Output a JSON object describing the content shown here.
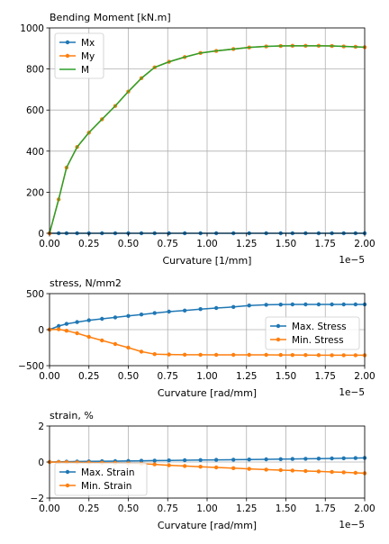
{
  "chart_data": [
    {
      "type": "line",
      "title": "Bending Moment [kN.m]",
      "xlabel": "Curvature [1/mm]",
      "ylabel": "",
      "x_offset_label": "1e−5",
      "xlim": [
        0,
        2e-05
      ],
      "ylim": [
        0,
        1000
      ],
      "xticks": [
        0,
        2.5e-06,
        5e-06,
        7.5e-06,
        1e-05,
        1.25e-05,
        1.5e-05,
        1.75e-05,
        2e-05
      ],
      "xtick_labels": [
        "0.00",
        "0.25",
        "0.50",
        "0.75",
        "1.00",
        "1.25",
        "1.50",
        "1.75",
        "2.00"
      ],
      "yticks": [
        0,
        200,
        400,
        600,
        800,
        1000
      ],
      "ytick_labels": [
        "0",
        "200",
        "400",
        "600",
        "800",
        "1000"
      ],
      "grid": true,
      "legend": "upper-left",
      "x": [
        0,
        5.8e-07,
        1.08e-06,
        1.75e-06,
        2.5e-06,
        3.33e-06,
        4.17e-06,
        5e-06,
        5.83e-06,
        6.67e-06,
        7.58e-06,
        8.58e-06,
        9.58e-06,
        1.058e-05,
        1.167e-05,
        1.267e-05,
        1.375e-05,
        1.467e-05,
        1.542e-05,
        1.625e-05,
        1.708e-05,
        1.792e-05,
        1.867e-05,
        1.942e-05,
        2e-05
      ],
      "series": [
        {
          "name": "Mx",
          "color": "#1f77b4",
          "marker": true,
          "values": [
            0,
            0,
            0,
            0,
            0,
            0,
            0,
            0,
            0,
            0,
            0,
            0,
            0,
            0,
            0,
            0,
            0,
            0,
            0,
            0,
            0,
            0,
            0,
            0,
            0
          ]
        },
        {
          "name": "My",
          "color": "#ff7f0e",
          "marker": true,
          "values": [
            0,
            165,
            320,
            420,
            490,
            555,
            620,
            690,
            755,
            808,
            835,
            858,
            878,
            888,
            897,
            905,
            910,
            912,
            913,
            913,
            913,
            912,
            910,
            908,
            906
          ]
        },
        {
          "name": "M",
          "color": "#2ca02c",
          "marker": false,
          "values": [
            0,
            165,
            320,
            420,
            490,
            555,
            620,
            690,
            755,
            808,
            835,
            858,
            878,
            888,
            897,
            905,
            910,
            912,
            913,
            913,
            913,
            912,
            910,
            908,
            906
          ]
        }
      ]
    },
    {
      "type": "line",
      "title": "stress, N/mm2",
      "xlabel": "Curvature [rad/mm]",
      "ylabel": "",
      "x_offset_label": "1e−5",
      "xlim": [
        0,
        2e-05
      ],
      "ylim": [
        -500,
        500
      ],
      "xticks": [
        0,
        2.5e-06,
        5e-06,
        7.5e-06,
        1e-05,
        1.25e-05,
        1.5e-05,
        1.75e-05,
        2e-05
      ],
      "xtick_labels": [
        "0.00",
        "0.25",
        "0.50",
        "0.75",
        "1.00",
        "1.25",
        "1.50",
        "1.75",
        "2.00"
      ],
      "yticks": [
        -500,
        0,
        500
      ],
      "ytick_labels": [
        "−500",
        "0",
        "500"
      ],
      "grid": true,
      "legend": "center-right",
      "x": [
        0,
        5.8e-07,
        1.08e-06,
        1.75e-06,
        2.5e-06,
        3.33e-06,
        4.17e-06,
        5e-06,
        5.83e-06,
        6.67e-06,
        7.58e-06,
        8.58e-06,
        9.58e-06,
        1.058e-05,
        1.167e-05,
        1.267e-05,
        1.375e-05,
        1.467e-05,
        1.542e-05,
        1.625e-05,
        1.708e-05,
        1.792e-05,
        1.867e-05,
        1.942e-05,
        2e-05
      ],
      "series": [
        {
          "name": "Max. Stress",
          "color": "#1f77b4",
          "marker": true,
          "values": [
            0,
            50,
            80,
            105,
            130,
            150,
            170,
            190,
            210,
            230,
            250,
            265,
            285,
            300,
            315,
            335,
            345,
            348,
            350,
            350,
            350,
            350,
            350,
            350,
            350
          ]
        },
        {
          "name": "Min. Stress",
          "color": "#ff7f0e",
          "marker": true,
          "values": [
            0,
            5,
            -15,
            -50,
            -100,
            -150,
            -200,
            -250,
            -305,
            -340,
            -345,
            -348,
            -349,
            -350,
            -350,
            -350,
            -350,
            -351,
            -352,
            -353,
            -354,
            -355,
            -355,
            -355,
            -355
          ]
        }
      ]
    },
    {
      "type": "line",
      "title": "strain, %",
      "xlabel": "Curvature [rad/mm]",
      "ylabel": "",
      "x_offset_label": "1e−5",
      "xlim": [
        0,
        2e-05
      ],
      "ylim": [
        -2,
        2
      ],
      "xticks": [
        0,
        2.5e-06,
        5e-06,
        7.5e-06,
        1e-05,
        1.25e-05,
        1.5e-05,
        1.75e-05,
        2e-05
      ],
      "xtick_labels": [
        "0.00",
        "0.25",
        "0.50",
        "0.75",
        "1.00",
        "1.25",
        "1.50",
        "1.75",
        "2.00"
      ],
      "yticks": [
        -2,
        0,
        2
      ],
      "ytick_labels": [
        "−2",
        "0",
        "2"
      ],
      "grid": true,
      "legend": "lower-left",
      "x": [
        0,
        5.8e-07,
        1.08e-06,
        1.75e-06,
        2.5e-06,
        3.33e-06,
        4.17e-06,
        5e-06,
        5.83e-06,
        6.67e-06,
        7.58e-06,
        8.58e-06,
        9.58e-06,
        1.058e-05,
        1.167e-05,
        1.267e-05,
        1.375e-05,
        1.467e-05,
        1.542e-05,
        1.625e-05,
        1.708e-05,
        1.792e-05,
        1.867e-05,
        1.942e-05,
        2e-05
      ],
      "series": [
        {
          "name": "Max. Strain",
          "color": "#1f77b4",
          "marker": true,
          "values": [
            0,
            0.01,
            0.02,
            0.03,
            0.035,
            0.045,
            0.05,
            0.06,
            0.07,
            0.08,
            0.09,
            0.1,
            0.11,
            0.12,
            0.13,
            0.14,
            0.15,
            0.16,
            0.17,
            0.18,
            0.19,
            0.2,
            0.21,
            0.22,
            0.23
          ]
        },
        {
          "name": "Min. Strain",
          "color": "#ff7f0e",
          "marker": true,
          "values": [
            0,
            -0.005,
            -0.01,
            -0.02,
            -0.03,
            -0.04,
            -0.05,
            -0.07,
            -0.09,
            -0.13,
            -0.18,
            -0.22,
            -0.26,
            -0.3,
            -0.34,
            -0.38,
            -0.42,
            -0.45,
            -0.47,
            -0.5,
            -0.52,
            -0.55,
            -0.57,
            -0.6,
            -0.62
          ]
        }
      ]
    }
  ]
}
